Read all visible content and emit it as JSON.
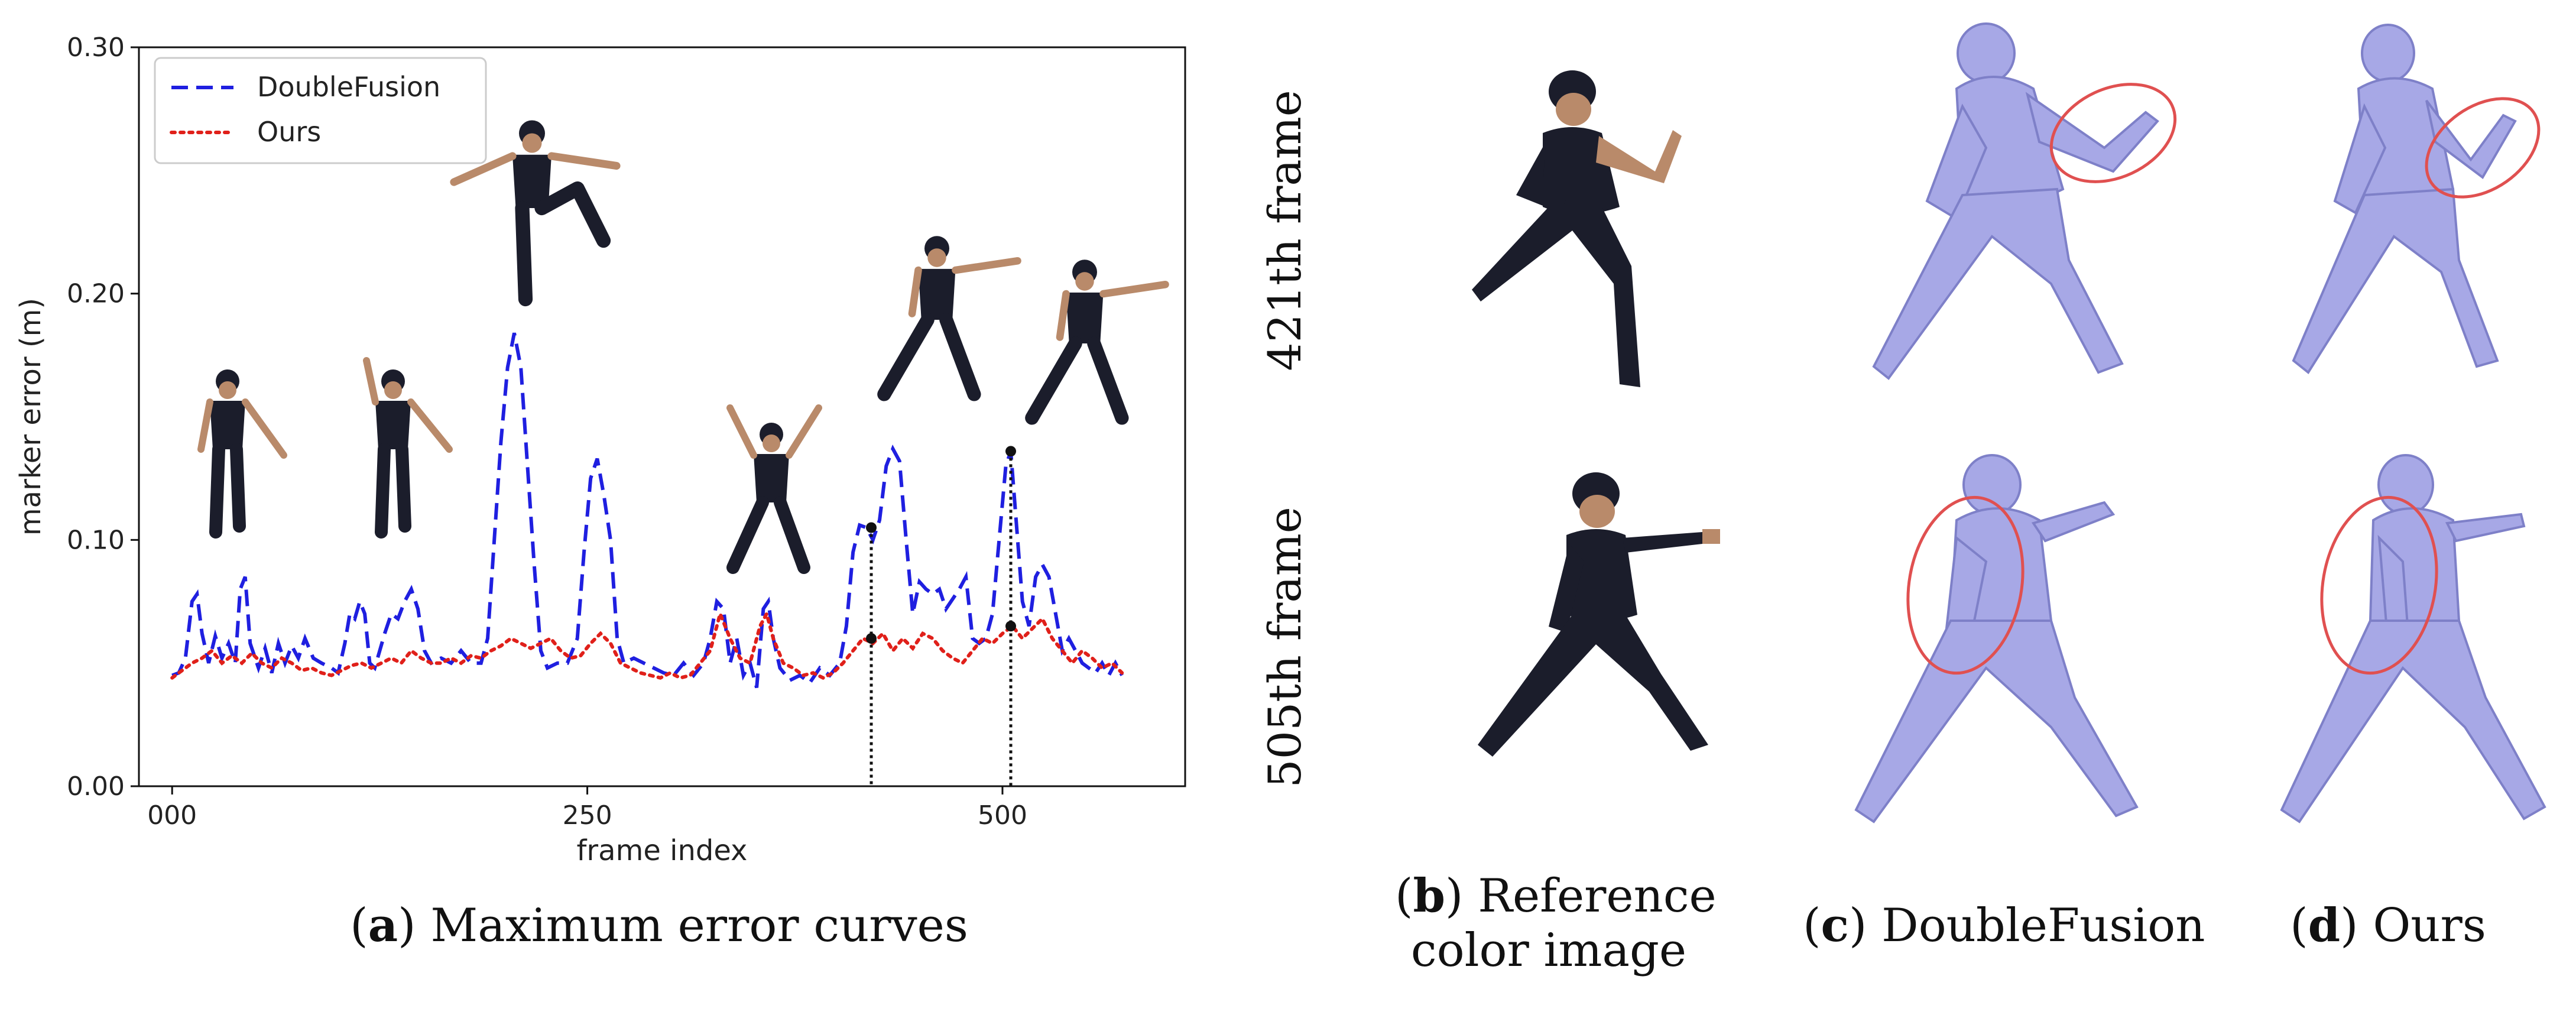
{
  "chart_data": {
    "type": "line",
    "xlabel": "frame index",
    "ylabel": "marker error (m)",
    "xlim": [
      -20,
      610
    ],
    "ylim": [
      0.0,
      0.3
    ],
    "xticks": [
      "000",
      "250",
      "500"
    ],
    "xtick_values": [
      0,
      250,
      500
    ],
    "yticks": [
      "0.00",
      "0.10",
      "0.20",
      "0.30"
    ],
    "ytick_values": [
      0.0,
      0.1,
      0.2,
      0.3
    ],
    "legend_position": "top-left",
    "series": [
      {
        "name": "DoubleFusion",
        "color": "#1f1fe0",
        "style": "dashed",
        "points": [
          [
            0,
            0.045
          ],
          [
            4,
            0.046
          ],
          [
            8,
            0.052
          ],
          [
            12,
            0.075
          ],
          [
            15,
            0.078
          ],
          [
            18,
            0.062
          ],
          [
            22,
            0.05
          ],
          [
            26,
            0.061
          ],
          [
            30,
            0.052
          ],
          [
            34,
            0.058
          ],
          [
            38,
            0.05
          ],
          [
            41,
            0.08
          ],
          [
            44,
            0.085
          ],
          [
            47,
            0.058
          ],
          [
            52,
            0.048
          ],
          [
            56,
            0.056
          ],
          [
            60,
            0.046
          ],
          [
            64,
            0.058
          ],
          [
            68,
            0.05
          ],
          [
            72,
            0.057
          ],
          [
            76,
            0.052
          ],
          [
            80,
            0.06
          ],
          [
            85,
            0.052
          ],
          [
            90,
            0.05
          ],
          [
            96,
            0.048
          ],
          [
            100,
            0.046
          ],
          [
            104,
            0.058
          ],
          [
            107,
            0.07
          ],
          [
            110,
            0.068
          ],
          [
            113,
            0.075
          ],
          [
            116,
            0.07
          ],
          [
            119,
            0.05
          ],
          [
            122,
            0.048
          ],
          [
            128,
            0.062
          ],
          [
            132,
            0.07
          ],
          [
            136,
            0.068
          ],
          [
            140,
            0.075
          ],
          [
            144,
            0.08
          ],
          [
            148,
            0.072
          ],
          [
            152,
            0.055
          ],
          [
            156,
            0.05
          ],
          [
            162,
            0.052
          ],
          [
            168,
            0.05
          ],
          [
            174,
            0.055
          ],
          [
            180,
            0.05
          ],
          [
            186,
            0.05
          ],
          [
            190,
            0.06
          ],
          [
            194,
            0.1
          ],
          [
            198,
            0.14
          ],
          [
            202,
            0.17
          ],
          [
            206,
            0.184
          ],
          [
            210,
            0.17
          ],
          [
            214,
            0.13
          ],
          [
            218,
            0.09
          ],
          [
            222,
            0.055
          ],
          [
            226,
            0.048
          ],
          [
            232,
            0.05
          ],
          [
            238,
            0.05
          ],
          [
            244,
            0.06
          ],
          [
            248,
            0.095
          ],
          [
            252,
            0.125
          ],
          [
            256,
            0.133
          ],
          [
            260,
            0.118
          ],
          [
            264,
            0.1
          ],
          [
            268,
            0.06
          ],
          [
            272,
            0.05
          ],
          [
            278,
            0.052
          ],
          [
            284,
            0.05
          ],
          [
            290,
            0.048
          ],
          [
            296,
            0.046
          ],
          [
            302,
            0.045
          ],
          [
            308,
            0.05
          ],
          [
            314,
            0.045
          ],
          [
            320,
            0.05
          ],
          [
            324,
            0.06
          ],
          [
            328,
            0.075
          ],
          [
            332,
            0.072
          ],
          [
            336,
            0.05
          ],
          [
            340,
            0.06
          ],
          [
            344,
            0.045
          ],
          [
            348,
            0.05
          ],
          [
            352,
            0.04
          ],
          [
            356,
            0.072
          ],
          [
            359,
            0.075
          ],
          [
            362,
            0.06
          ],
          [
            366,
            0.048
          ],
          [
            372,
            0.043
          ],
          [
            378,
            0.045
          ],
          [
            384,
            0.042
          ],
          [
            390,
            0.048
          ],
          [
            396,
            0.045
          ],
          [
            402,
            0.05
          ],
          [
            406,
            0.065
          ],
          [
            410,
            0.095
          ],
          [
            414,
            0.106
          ],
          [
            418,
            0.105
          ],
          [
            422,
            0.1
          ],
          [
            426,
            0.108
          ],
          [
            430,
            0.13
          ],
          [
            434,
            0.137
          ],
          [
            438,
            0.132
          ],
          [
            442,
            0.1
          ],
          [
            446,
            0.07
          ],
          [
            450,
            0.083
          ],
          [
            454,
            0.08
          ],
          [
            458,
            0.078
          ],
          [
            462,
            0.08
          ],
          [
            466,
            0.072
          ],
          [
            470,
            0.076
          ],
          [
            474,
            0.08
          ],
          [
            478,
            0.085
          ],
          [
            482,
            0.06
          ],
          [
            486,
            0.058
          ],
          [
            490,
            0.06
          ],
          [
            494,
            0.07
          ],
          [
            498,
            0.1
          ],
          [
            502,
            0.13
          ],
          [
            505,
            0.136
          ],
          [
            508,
            0.11
          ],
          [
            512,
            0.075
          ],
          [
            516,
            0.065
          ],
          [
            520,
            0.085
          ],
          [
            524,
            0.09
          ],
          [
            528,
            0.085
          ],
          [
            532,
            0.07
          ],
          [
            536,
            0.055
          ],
          [
            540,
            0.06
          ],
          [
            544,
            0.055
          ],
          [
            548,
            0.05
          ],
          [
            552,
            0.048
          ],
          [
            556,
            0.046
          ],
          [
            560,
            0.05
          ],
          [
            564,
            0.045
          ],
          [
            568,
            0.05
          ],
          [
            572,
            0.045
          ]
        ]
      },
      {
        "name": "Ours",
        "color": "#e0201a",
        "style": "dotted",
        "points": [
          [
            0,
            0.044
          ],
          [
            6,
            0.047
          ],
          [
            12,
            0.05
          ],
          [
            18,
            0.052
          ],
          [
            24,
            0.055
          ],
          [
            30,
            0.05
          ],
          [
            36,
            0.053
          ],
          [
            42,
            0.05
          ],
          [
            48,
            0.054
          ],
          [
            54,
            0.05
          ],
          [
            60,
            0.048
          ],
          [
            66,
            0.052
          ],
          [
            72,
            0.05
          ],
          [
            78,
            0.047
          ],
          [
            84,
            0.048
          ],
          [
            90,
            0.046
          ],
          [
            96,
            0.045
          ],
          [
            102,
            0.047
          ],
          [
            108,
            0.049
          ],
          [
            114,
            0.05
          ],
          [
            120,
            0.048
          ],
          [
            126,
            0.05
          ],
          [
            132,
            0.052
          ],
          [
            138,
            0.05
          ],
          [
            144,
            0.055
          ],
          [
            150,
            0.052
          ],
          [
            156,
            0.05
          ],
          [
            162,
            0.05
          ],
          [
            168,
            0.052
          ],
          [
            174,
            0.05
          ],
          [
            180,
            0.053
          ],
          [
            186,
            0.052
          ],
          [
            192,
            0.055
          ],
          [
            198,
            0.057
          ],
          [
            204,
            0.06
          ],
          [
            210,
            0.058
          ],
          [
            216,
            0.056
          ],
          [
            222,
            0.058
          ],
          [
            228,
            0.06
          ],
          [
            234,
            0.055
          ],
          [
            240,
            0.052
          ],
          [
            246,
            0.053
          ],
          [
            252,
            0.058
          ],
          [
            258,
            0.062
          ],
          [
            264,
            0.058
          ],
          [
            270,
            0.05
          ],
          [
            276,
            0.048
          ],
          [
            282,
            0.046
          ],
          [
            288,
            0.045
          ],
          [
            294,
            0.044
          ],
          [
            300,
            0.046
          ],
          [
            306,
            0.044
          ],
          [
            312,
            0.045
          ],
          [
            318,
            0.05
          ],
          [
            324,
            0.055
          ],
          [
            330,
            0.07
          ],
          [
            336,
            0.06
          ],
          [
            342,
            0.052
          ],
          [
            348,
            0.05
          ],
          [
            354,
            0.065
          ],
          [
            358,
            0.07
          ],
          [
            362,
            0.06
          ],
          [
            368,
            0.05
          ],
          [
            374,
            0.048
          ],
          [
            380,
            0.045
          ],
          [
            386,
            0.046
          ],
          [
            392,
            0.044
          ],
          [
            398,
            0.046
          ],
          [
            404,
            0.05
          ],
          [
            410,
            0.055
          ],
          [
            416,
            0.06
          ],
          [
            422,
            0.058
          ],
          [
            428,
            0.062
          ],
          [
            434,
            0.055
          ],
          [
            440,
            0.06
          ],
          [
            446,
            0.056
          ],
          [
            452,
            0.062
          ],
          [
            458,
            0.06
          ],
          [
            464,
            0.055
          ],
          [
            470,
            0.052
          ],
          [
            476,
            0.05
          ],
          [
            482,
            0.055
          ],
          [
            488,
            0.06
          ],
          [
            494,
            0.058
          ],
          [
            500,
            0.062
          ],
          [
            506,
            0.065
          ],
          [
            512,
            0.06
          ],
          [
            518,
            0.064
          ],
          [
            524,
            0.068
          ],
          [
            530,
            0.06
          ],
          [
            536,
            0.055
          ],
          [
            542,
            0.05
          ],
          [
            548,
            0.055
          ],
          [
            554,
            0.052
          ],
          [
            560,
            0.048
          ],
          [
            566,
            0.05
          ],
          [
            572,
            0.046
          ]
        ]
      }
    ],
    "markers": [
      {
        "x": 421,
        "y_top": 0.105,
        "y_mid": 0.06
      },
      {
        "x": 505,
        "y_top": 0.136,
        "y_mid": 0.065
      }
    ]
  },
  "captions": {
    "a": {
      "letter": "a",
      "text": "Maximum error curves"
    },
    "b": {
      "letter": "b",
      "line1": "Reference",
      "line2": "color image"
    },
    "c": {
      "letter": "c",
      "text": "DoubleFusion"
    },
    "d": {
      "letter": "d",
      "text": "Ours"
    }
  },
  "row_labels": [
    "421th frame",
    "505th frame"
  ],
  "colors": {
    "mesh": "#a7a8e6",
    "mesh_dark": "#7e80c8",
    "circle": "#e05050",
    "skin": "#b98a6a",
    "clothes": "#1b1d2b"
  }
}
